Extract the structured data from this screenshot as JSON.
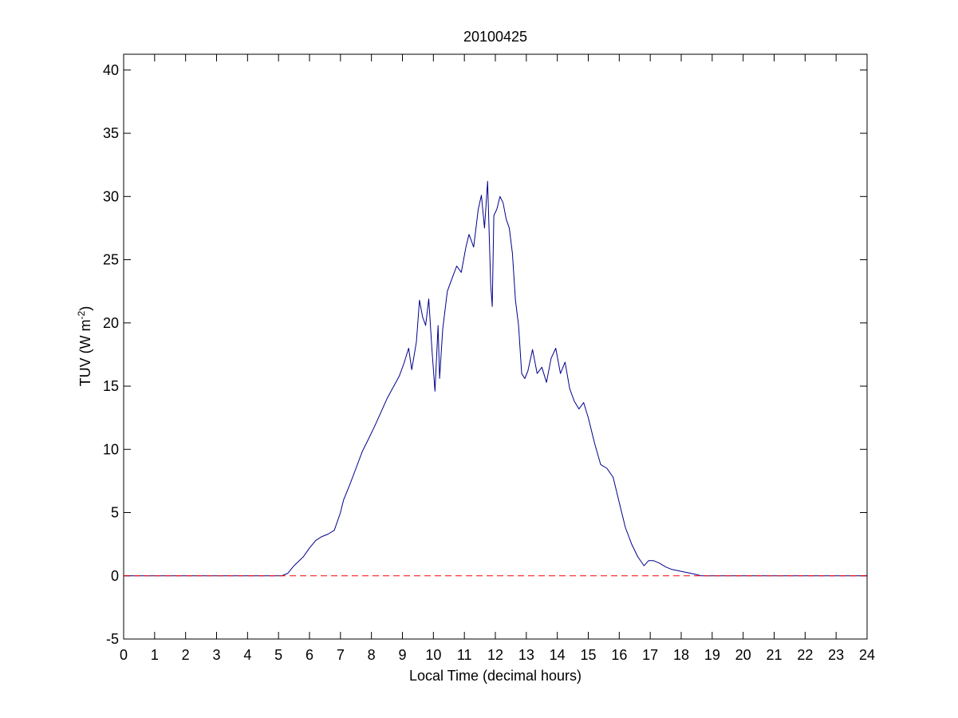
{
  "chart_data": {
    "type": "line",
    "title": "20100425",
    "xlabel": "Local Time (decimal hours)",
    "ylabel_main": "TUV (W m",
    "ylabel_sup": "-2",
    "ylabel_close": ")",
    "xlim": [
      0,
      24
    ],
    "ylim": [
      -5,
      41.25
    ],
    "xticks": [
      0,
      1,
      2,
      3,
      4,
      5,
      6,
      7,
      8,
      9,
      10,
      11,
      12,
      13,
      14,
      15,
      16,
      17,
      18,
      19,
      20,
      21,
      22,
      23,
      24
    ],
    "yticks": [
      -5,
      0,
      5,
      10,
      15,
      20,
      25,
      30,
      35,
      40
    ],
    "grid": false,
    "legend": "none",
    "colors": {
      "series": "#00008b",
      "baseline": "#ff0000"
    },
    "series": [
      {
        "style": "solid",
        "x": [
          0,
          5.1,
          5.3,
          5.5,
          5.8,
          6.0,
          6.2,
          6.4,
          6.6,
          6.8,
          7.0,
          7.1,
          7.3,
          7.5,
          7.7,
          7.9,
          8.1,
          8.3,
          8.5,
          8.7,
          8.9,
          9.05,
          9.2,
          9.3,
          9.45,
          9.55,
          9.65,
          9.75,
          9.85,
          9.95,
          10.05,
          10.15,
          10.2,
          10.3,
          10.45,
          10.6,
          10.75,
          10.9,
          11.05,
          11.15,
          11.3,
          11.45,
          11.55,
          11.65,
          11.75,
          11.85,
          11.9,
          11.95,
          12.05,
          12.15,
          12.25,
          12.35,
          12.45,
          12.55,
          12.65,
          12.75,
          12.85,
          12.95,
          13.05,
          13.2,
          13.35,
          13.5,
          13.65,
          13.8,
          13.95,
          14.1,
          14.25,
          14.4,
          14.55,
          14.7,
          14.85,
          15.0,
          15.2,
          15.4,
          15.6,
          15.8,
          16.0,
          16.2,
          16.4,
          16.6,
          16.8,
          16.95,
          17.1,
          17.3,
          17.5,
          17.7,
          17.9,
          18.1,
          18.3,
          18.5,
          18.65,
          18.75,
          24
        ],
        "y": [
          0,
          0,
          0.2,
          0.8,
          1.5,
          2.2,
          2.8,
          3.1,
          3.3,
          3.6,
          5.0,
          6.0,
          7.2,
          8.5,
          9.8,
          10.8,
          11.8,
          12.9,
          14.0,
          14.9,
          15.8,
          16.8,
          18.0,
          16.3,
          18.5,
          21.8,
          20.5,
          19.8,
          21.9,
          18.0,
          14.6,
          19.8,
          15.6,
          19.5,
          22.5,
          23.5,
          24.5,
          24.0,
          26.0,
          27.0,
          26.0,
          29.0,
          30.1,
          27.5,
          31.2,
          23.0,
          21.3,
          28.5,
          29.0,
          30.0,
          29.5,
          28.2,
          27.5,
          25.5,
          21.8,
          19.8,
          16.0,
          15.6,
          16.2,
          17.9,
          16.0,
          16.5,
          15.3,
          17.2,
          18.0,
          16.0,
          16.9,
          14.8,
          13.8,
          13.2,
          13.7,
          12.5,
          10.5,
          8.8,
          8.5,
          7.8,
          5.8,
          3.8,
          2.5,
          1.5,
          0.8,
          1.2,
          1.2,
          1.0,
          0.7,
          0.5,
          0.4,
          0.3,
          0.2,
          0.1,
          0,
          0,
          0
        ]
      },
      {
        "style": "dashed",
        "x": [
          0,
          24
        ],
        "y": [
          0,
          0
        ]
      }
    ]
  }
}
